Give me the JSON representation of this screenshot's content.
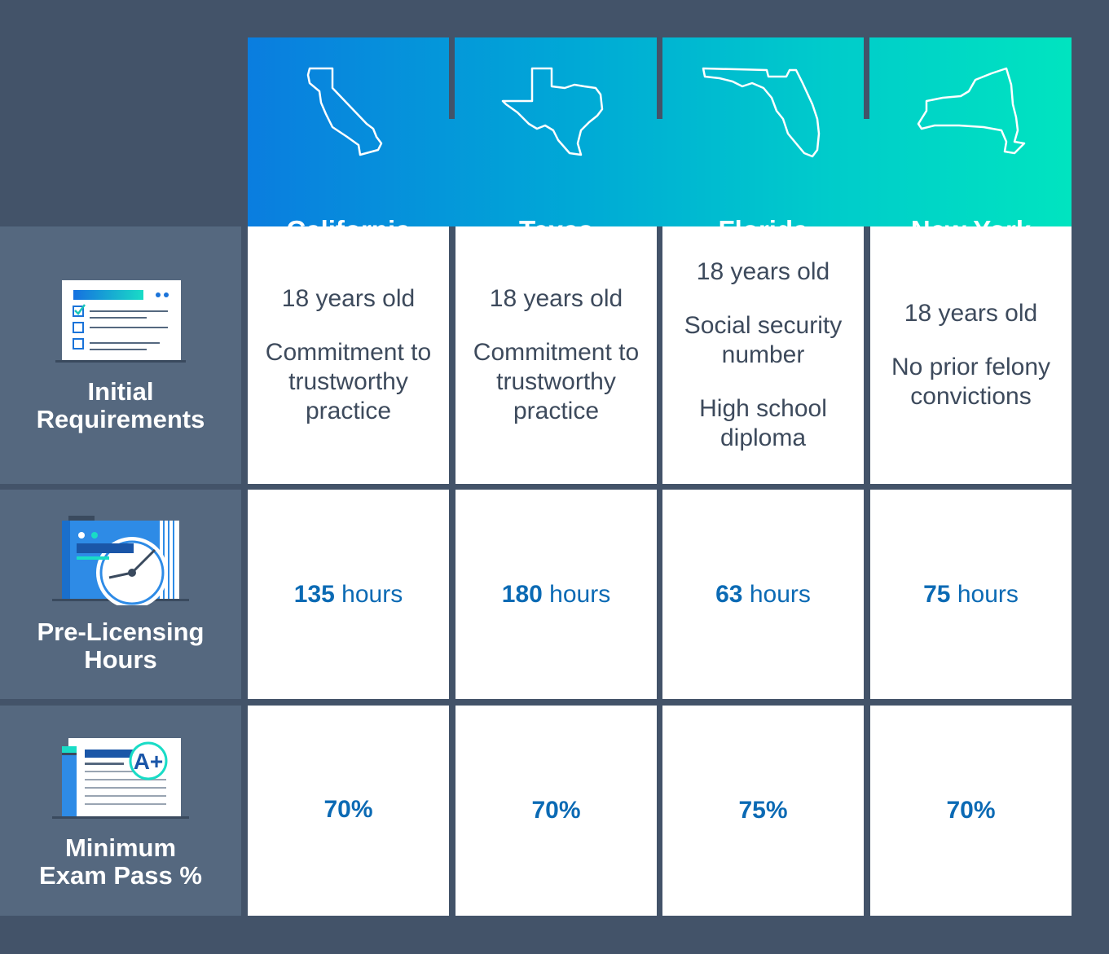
{
  "states": [
    {
      "id": "california",
      "name": "California",
      "icon": "california-map-icon"
    },
    {
      "id": "texas",
      "name": "Texas",
      "icon": "texas-map-icon"
    },
    {
      "id": "florida",
      "name": "Florida",
      "icon": "florida-map-icon"
    },
    {
      "id": "new_york",
      "name": "New York",
      "icon": "new-york-map-icon"
    }
  ],
  "rows": {
    "initial": {
      "label_line1": "Initial",
      "label_line2": "Requirements",
      "icon": "checklist-document-icon",
      "values": [
        {
          "lines": [
            "18 years old",
            "Commitment to trustworthy practice"
          ]
        },
        {
          "lines": [
            "18 years old",
            "Commitment to trustworthy practice"
          ]
        },
        {
          "lines": [
            "18 years old",
            "Social security number",
            "High school diploma"
          ]
        },
        {
          "lines": [
            "18 years old",
            "No prior felony convictions"
          ]
        }
      ]
    },
    "hours": {
      "label_line1": "Pre-Licensing",
      "label_line2": "Hours",
      "icon": "clock-calendar-icon",
      "unit": "hours",
      "values": [
        "135",
        "180",
        "63",
        "75"
      ]
    },
    "exam": {
      "label_line1": "Minimum",
      "label_line2": "Exam Pass %",
      "icon": "graded-test-icon",
      "grade_text": "A+",
      "values": [
        "70%",
        "70%",
        "75%",
        "70%"
      ]
    }
  },
  "colors": {
    "background": "#435369",
    "label_panel": "#55687f",
    "gradient_start": "#0a7ddf",
    "gradient_end": "#00e4c0",
    "value_blue": "#0b6ab4",
    "body_text": "#3d4a5c"
  }
}
